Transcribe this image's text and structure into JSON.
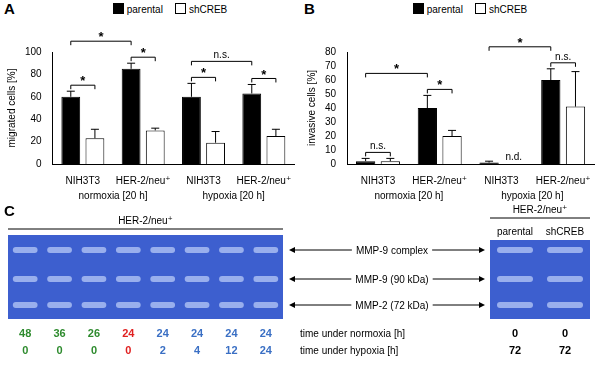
{
  "chart_data": [
    {
      "panel": "A",
      "type": "bar",
      "y_label": "migrated cells [%]",
      "categories": [
        "NIH3T3",
        "HER-2/neu⁺",
        "NIH3T3",
        "HER-2/neu⁺"
      ],
      "groups": [
        {
          "name": "normoxia [20 h]",
          "span": [
            0,
            1
          ]
        },
        {
          "name": "hypoxia [20 h]",
          "span": [
            2,
            3
          ]
        }
      ],
      "series": [
        {
          "name": "parental",
          "color": "#000000",
          "values": [
            60,
            85,
            60,
            63
          ],
          "errors": [
            5,
            5,
            12,
            8
          ]
        },
        {
          "name": "shCREB",
          "color": "#ffffff",
          "values": [
            23,
            30,
            19,
            25
          ],
          "errors": [
            8,
            2,
            10,
            6
          ]
        }
      ],
      "ylim": [
        0,
        100
      ],
      "yticks": [
        0,
        20,
        40,
        60,
        80,
        100
      ],
      "grid": false,
      "legend": "top",
      "annotations": [
        {
          "text": "*",
          "between": [
            [
              0,
              0
            ],
            [
              1,
              0
            ]
          ]
        },
        {
          "text": "*",
          "between": [
            [
              0,
              0
            ],
            [
              0,
              1
            ]
          ]
        },
        {
          "text": "*",
          "between": [
            [
              1,
              0
            ],
            [
              1,
              1
            ]
          ]
        },
        {
          "text": "n.s.",
          "between": [
            [
              2,
              0
            ],
            [
              3,
              0
            ]
          ]
        },
        {
          "text": "*",
          "between": [
            [
              2,
              0
            ],
            [
              2,
              1
            ]
          ]
        },
        {
          "text": "*",
          "between": [
            [
              3,
              0
            ],
            [
              3,
              1
            ]
          ]
        }
      ]
    },
    {
      "panel": "B",
      "type": "bar",
      "y_label": "invasive cells [%]",
      "categories": [
        "NIH3T3",
        "HER-2/neu⁺",
        "NIH3T3",
        "HER-2/neu⁺"
      ],
      "groups": [
        {
          "name": "normoxia [20 h]",
          "span": [
            0,
            1
          ]
        },
        {
          "name": "hypoxia [20 h]",
          "span": [
            2,
            3
          ]
        }
      ],
      "series": [
        {
          "name": "parental",
          "color": "#000000",
          "values": [
            2,
            40,
            1,
            60
          ],
          "errors": [
            2,
            9,
            1,
            8
          ]
        },
        {
          "name": "shCREB",
          "color": "#ffffff",
          "values": [
            2,
            20,
            null,
            41
          ],
          "errors": [
            2,
            4,
            null,
            25
          ]
        }
      ],
      "ylim": [
        0,
        80
      ],
      "yticks": [
        0,
        10,
        20,
        30,
        40,
        50,
        60,
        70,
        80
      ],
      "grid": false,
      "legend": "top",
      "annotations": [
        {
          "text": "n.s.",
          "between": [
            [
              0,
              0
            ],
            [
              0,
              1
            ]
          ]
        },
        {
          "text": "*",
          "between": [
            [
              0,
              0
            ],
            [
              1,
              0
            ]
          ]
        },
        {
          "text": "*",
          "between": [
            [
              1,
              0
            ],
            [
              1,
              1
            ]
          ]
        },
        {
          "text": "*",
          "between": [
            [
              2,
              0
            ],
            [
              3,
              0
            ]
          ]
        },
        {
          "text": "n.s.",
          "between": [
            [
              3,
              0
            ],
            [
              3,
              1
            ]
          ]
        },
        {
          "text": "n.d.",
          "at": [
            2,
            1
          ]
        }
      ]
    }
  ],
  "gel_panel": {
    "panel": "C",
    "bands": [
      "MMP-9 complex",
      "MMP-9 (90 kDa)",
      "MMP-2 (72 kDa)"
    ],
    "row_labels": [
      "time under normoxia [h]",
      "time under hypoxia [h]"
    ],
    "gels": [
      {
        "title": "HER-2/neu⁺",
        "lanes": [
          {
            "normoxia": 48,
            "hypoxia": 0,
            "color": "#2e8b2e"
          },
          {
            "normoxia": 36,
            "hypoxia": 0,
            "color": "#2e8b2e"
          },
          {
            "normoxia": 26,
            "hypoxia": 0,
            "color": "#2e8b2e"
          },
          {
            "normoxia": 24,
            "hypoxia": 0,
            "color": "#e02020"
          },
          {
            "normoxia": 24,
            "hypoxia": 2,
            "color": "#3a6fc4"
          },
          {
            "normoxia": 24,
            "hypoxia": 4,
            "color": "#3a6fc4"
          },
          {
            "normoxia": 24,
            "hypoxia": 12,
            "color": "#3a6fc4"
          },
          {
            "normoxia": 24,
            "hypoxia": 24,
            "color": "#3a6fc4"
          }
        ]
      },
      {
        "title": "HER-2/neu⁺",
        "lanes": [
          {
            "label": "parental",
            "normoxia": 0,
            "hypoxia": 72,
            "color": "#000000"
          },
          {
            "label": "shCREB",
            "normoxia": 0,
            "hypoxia": 72,
            "color": "#000000"
          }
        ]
      }
    ]
  }
}
